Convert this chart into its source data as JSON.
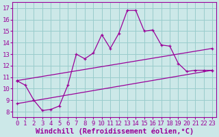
{
  "xlabel": "Windchill (Refroidissement éolien,°C)",
  "bg_color": "#cce8e8",
  "line_color": "#990099",
  "grid_color": "#99cccc",
  "xlim": [
    -0.5,
    23.5
  ],
  "ylim": [
    7.5,
    17.5
  ],
  "xticks": [
    0,
    1,
    2,
    3,
    4,
    5,
    6,
    7,
    8,
    9,
    10,
    11,
    12,
    13,
    14,
    15,
    16,
    17,
    18,
    19,
    20,
    21,
    22,
    23
  ],
  "yticks": [
    8,
    9,
    10,
    11,
    12,
    13,
    14,
    15,
    16,
    17
  ],
  "zigzag_x": [
    0,
    1,
    2,
    3,
    4,
    5,
    6,
    7,
    8,
    9,
    10,
    11,
    12,
    13,
    14,
    15,
    16,
    17,
    18,
    19,
    20,
    21,
    22,
    23
  ],
  "zigzag_y": [
    10.7,
    10.3,
    9.0,
    8.1,
    8.2,
    8.5,
    10.3,
    13.0,
    12.6,
    13.1,
    14.7,
    13.5,
    14.8,
    16.8,
    16.8,
    15.0,
    15.1,
    13.8,
    13.7,
    12.2,
    11.5,
    11.6,
    11.6,
    11.6
  ],
  "line1_x": [
    0,
    23
  ],
  "line1_y": [
    10.7,
    13.5
  ],
  "line2_x": [
    0,
    23
  ],
  "line2_y": [
    8.7,
    11.6
  ],
  "xlabel_fontsize": 7.5,
  "tick_fontsize": 6.5
}
